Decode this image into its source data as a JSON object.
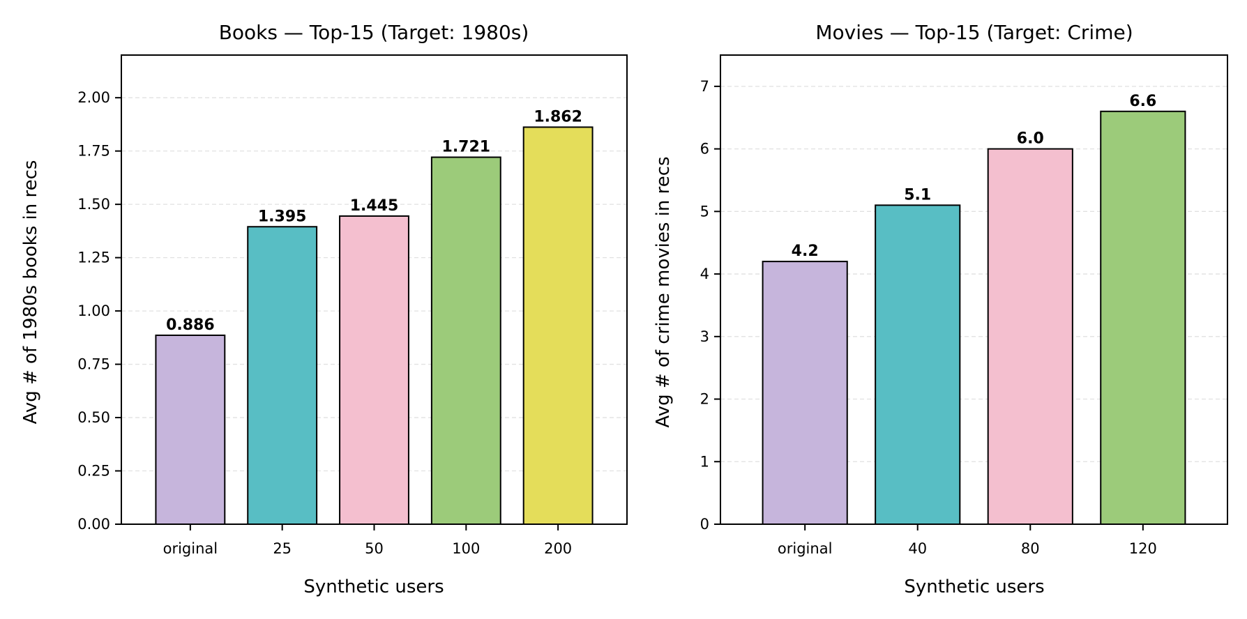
{
  "chart_data": [
    {
      "type": "bar",
      "title": "Books — Top-15 (Target: 1980s)",
      "xlabel": "Synthetic users",
      "ylabel": "Avg # of 1980s books in recs",
      "categories": [
        "original",
        "25",
        "50",
        "100",
        "200"
      ],
      "values": [
        0.886,
        1.395,
        1.445,
        1.721,
        1.862
      ],
      "value_labels": [
        "0.886",
        "1.395",
        "1.445",
        "1.721",
        "1.862"
      ],
      "colors": [
        "#c6b5dc",
        "#58bec4",
        "#f4bfcf",
        "#9ccb7a",
        "#e4dd5a"
      ],
      "ylim": [
        0,
        2.2
      ],
      "yticks": [
        0,
        0.25,
        0.5,
        0.75,
        1.0,
        1.25,
        1.5,
        1.75,
        2.0
      ],
      "ytick_labels": [
        "0.00",
        "0.25",
        "0.50",
        "0.75",
        "1.00",
        "1.25",
        "1.50",
        "1.75",
        "2.00"
      ],
      "grid": "y-dashed",
      "legend": "none"
    },
    {
      "type": "bar",
      "title": "Movies — Top-15 (Target: Crime)",
      "xlabel": "Synthetic users",
      "ylabel": "Avg # of crime movies in recs",
      "categories": [
        "original",
        "40",
        "80",
        "120"
      ],
      "values": [
        4.2,
        5.1,
        6.0,
        6.6
      ],
      "value_labels": [
        "4.2",
        "5.1",
        "6.0",
        "6.6"
      ],
      "colors": [
        "#c6b5dc",
        "#58bec4",
        "#f4bfcf",
        "#9ccb7a"
      ],
      "ylim": [
        0,
        7.5
      ],
      "yticks": [
        0,
        1,
        2,
        3,
        4,
        5,
        6,
        7
      ],
      "ytick_labels": [
        "0",
        "1",
        "2",
        "3",
        "4",
        "5",
        "6",
        "7"
      ],
      "grid": "y-dashed",
      "legend": "none"
    }
  ]
}
